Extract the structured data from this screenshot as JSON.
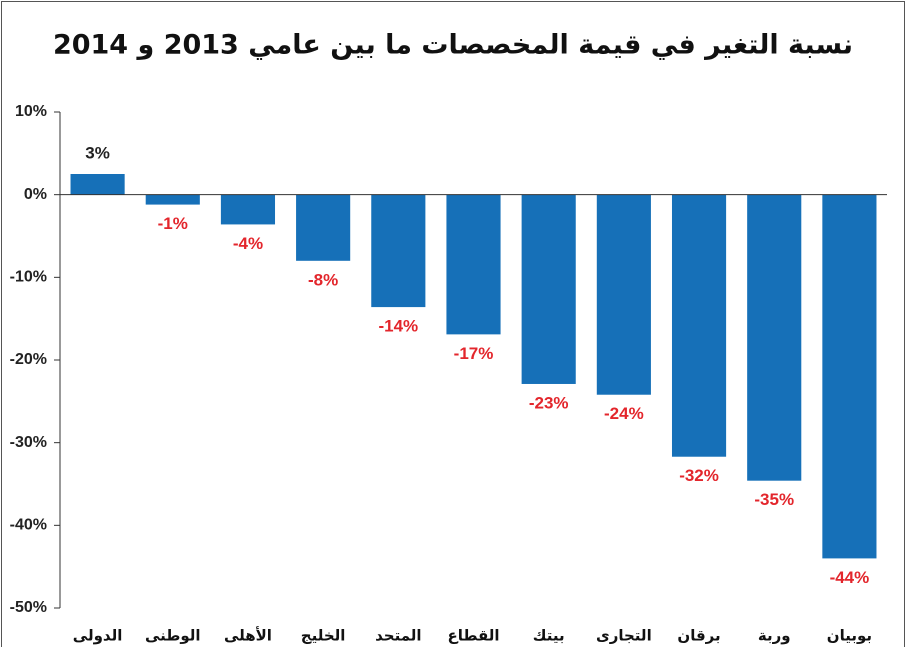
{
  "chart_data": {
    "type": "bar",
    "title": "نسبة التغير في قيمة المخصصات ما بين عامي 2013 و 2014",
    "categories": [
      "الدولى",
      "الوطنى",
      "الأهلى",
      "الخليج",
      "المتحد",
      "القطاع",
      "بيتك",
      "التجارى",
      "برقان",
      "وربة",
      "بوبيان"
    ],
    "values": [
      2.5,
      -1.2,
      -3.6,
      -8,
      -13.6,
      -16.9,
      -22.9,
      -24.2,
      -31.7,
      -34.6,
      -44
    ],
    "value_labels": [
      "3%",
      "-1%",
      "-4%",
      "-8%",
      "-14%",
      "-17%",
      "-23%",
      "-24%",
      "-32%",
      "-35%",
      "-44%"
    ],
    "color": "#1670b8",
    "positive_label_color": "#222222",
    "negative_label_color": "#e3262c",
    "ylim": [
      -50,
      10
    ],
    "yticks": [
      {
        "value": 10,
        "label": "10%"
      },
      {
        "value": 0,
        "label": "0%"
      },
      {
        "value": -10,
        "label": "-10%"
      },
      {
        "value": -20,
        "label": "-20%"
      },
      {
        "value": -30,
        "label": "-30%"
      },
      {
        "value": -40,
        "label": "-40%"
      },
      {
        "value": -50,
        "label": "-50%"
      }
    ],
    "grid": false
  }
}
